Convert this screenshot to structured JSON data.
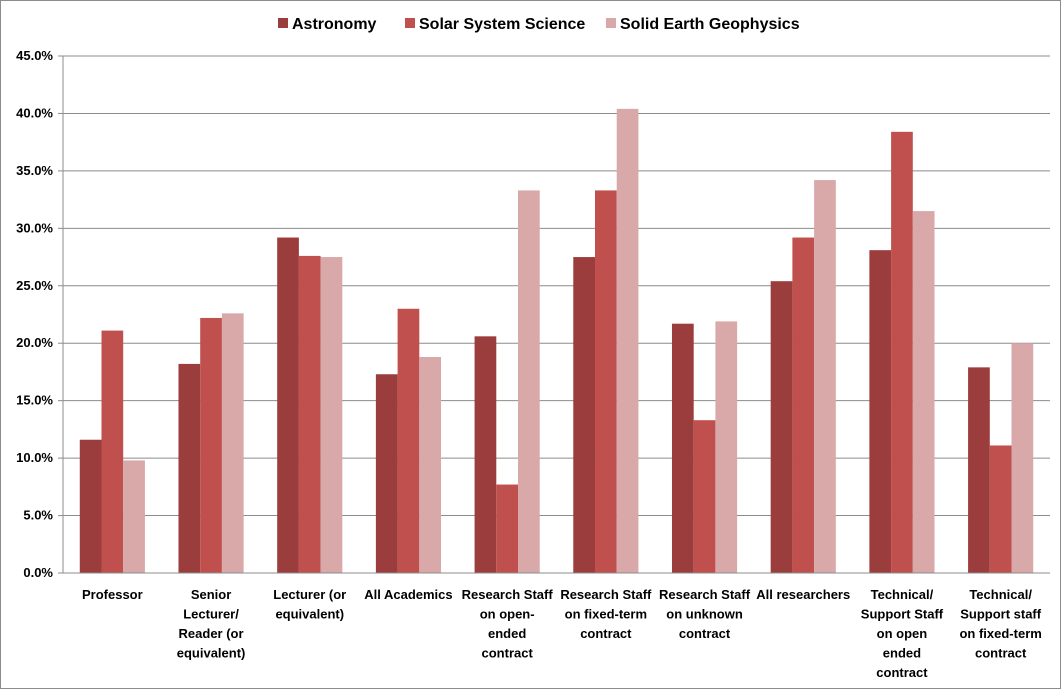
{
  "chart_data": {
    "type": "bar",
    "title": "",
    "xlabel": "",
    "ylabel": "",
    "ylim": [
      0,
      45
    ],
    "y_ticks": [
      "0.0%",
      "5.0%",
      "10.0%",
      "15.0%",
      "20.0%",
      "25.0%",
      "30.0%",
      "35.0%",
      "40.0%",
      "45.0%"
    ],
    "grid": "horizontal",
    "legend_position": "top",
    "categories": [
      [
        "Professor"
      ],
      [
        "Senior",
        "Lecturer/",
        "Reader (or",
        "equivalent)"
      ],
      [
        "Lecturer (or",
        "equivalent)"
      ],
      [
        "All Academics"
      ],
      [
        "Research Staff",
        "on open-",
        "ended",
        "contract"
      ],
      [
        "Research Staff",
        "on fixed-term",
        "contract"
      ],
      [
        "Research Staff",
        "on unknown",
        "contract"
      ],
      [
        "All researchers"
      ],
      [
        "Technical/",
        "Support Staff",
        "on open",
        "ended",
        "contract"
      ],
      [
        "Technical/",
        "Support staff",
        "on fixed-term",
        "contract"
      ]
    ],
    "series": [
      {
        "name": "Astronomy",
        "color": "#9b3d3d",
        "values": [
          11.6,
          18.2,
          29.2,
          17.3,
          20.6,
          27.5,
          21.7,
          25.4,
          28.1,
          17.9
        ]
      },
      {
        "name": "Solar System Science",
        "color": "#c0504d",
        "values": [
          21.1,
          22.2,
          27.6,
          23.0,
          7.7,
          33.3,
          13.3,
          29.2,
          38.4,
          11.1
        ]
      },
      {
        "name": "Solid Earth Geophysics",
        "color": "#d9a8a9",
        "values": [
          9.8,
          22.6,
          27.5,
          18.8,
          33.3,
          40.4,
          21.9,
          34.2,
          31.5,
          20.0
        ]
      }
    ]
  }
}
